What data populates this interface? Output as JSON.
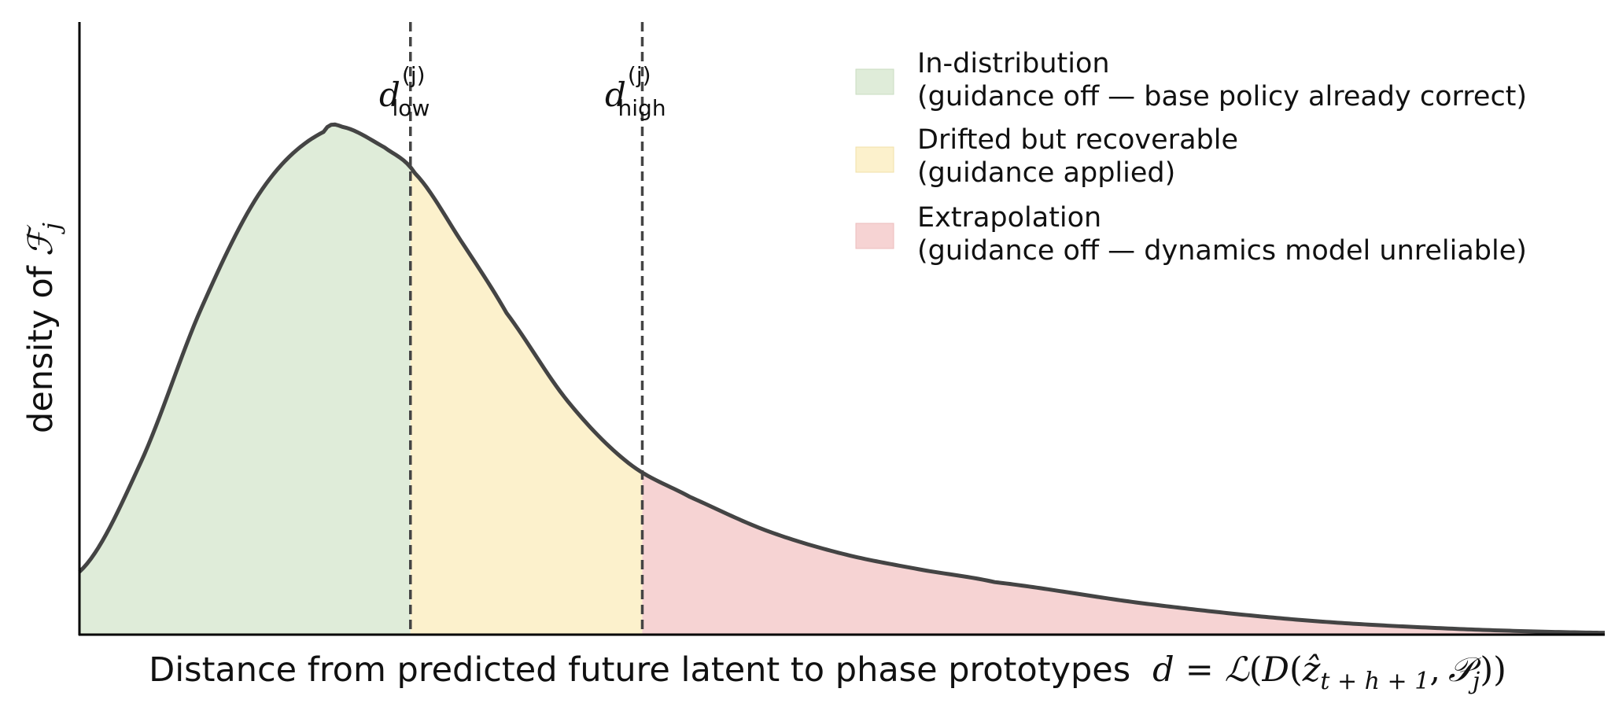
{
  "chart_data": {
    "type": "area",
    "title": "",
    "xlabel": "Distance from predicted future latent to phase prototypes",
    "xlabel_math": {
      "d": "d",
      "eq": "=",
      "L": "ℒ",
      "open": "(",
      "D": "D",
      "z": "ẑ",
      "sub": "t + h + 1",
      "comma": ",",
      "P": "𝒫",
      "psub": "j",
      "close": "))"
    },
    "ylabel_text": "density of",
    "ylabel_symbol": "ℱ",
    "ylabel_sub": "j",
    "xlim": [
      0,
      10
    ],
    "ylim": [
      0,
      1
    ],
    "grid": false,
    "legend_position": "top-right",
    "curve": {
      "x": [
        0.0,
        0.4,
        0.8,
        1.2,
        1.6,
        1.72,
        2.0,
        2.2,
        2.5,
        2.8,
        3.2,
        3.6,
        4.0,
        4.5,
        5.0,
        5.5,
        6.0,
        7.0,
        8.0,
        9.0,
        10.0
      ],
      "y": [
        0.12,
        0.33,
        0.63,
        0.86,
        0.97,
        0.98,
        0.94,
        0.89,
        0.76,
        0.62,
        0.45,
        0.33,
        0.265,
        0.2,
        0.155,
        0.125,
        0.1,
        0.058,
        0.027,
        0.01,
        0.002
      ]
    },
    "thresholds": [
      {
        "name": "d_low",
        "base": "d",
        "sup": "(j)",
        "sub": "low",
        "x": 2.17
      },
      {
        "name": "d_high",
        "base": "d",
        "sup": "(j)",
        "sub": "high",
        "x": 3.69
      }
    ],
    "regions": [
      {
        "label_line1": "In-distribution",
        "label_line2": "(guidance off — base policy already correct)",
        "x_range": [
          0,
          2.17
        ],
        "color": "#dfecd9"
      },
      {
        "label_line1": "Drifted but recoverable",
        "label_line2": "(guidance applied)",
        "x_range": [
          2.17,
          3.69
        ],
        "color": "#fcf1cc"
      },
      {
        "label_line1": "Extrapolation",
        "label_line2": "(guidance off — dynamics model unreliable)",
        "x_range": [
          3.69,
          10
        ],
        "color": "#f6d3d3"
      }
    ],
    "line_color": "#444444",
    "threshold_color": "#444444"
  }
}
